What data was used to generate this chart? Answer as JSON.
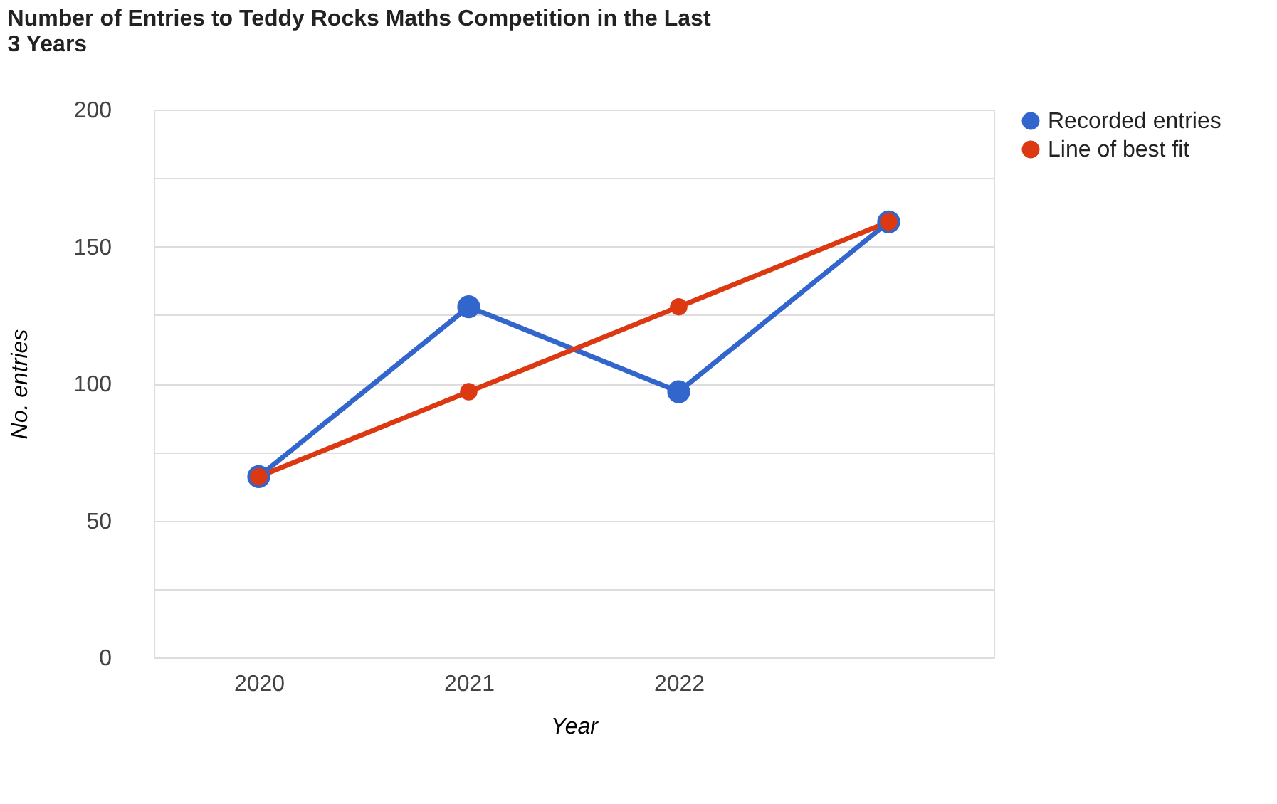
{
  "chart_data": {
    "type": "line",
    "title": "Number of Entries to Teddy Rocks Maths Competition in the Last 3 Years",
    "xlabel": "Year",
    "ylabel": "No. entries",
    "categories": [
      "2020",
      "2021",
      "2022",
      null
    ],
    "series": [
      {
        "name": "Recorded entries",
        "color": "#3366cc",
        "values": [
          66,
          128,
          97,
          159
        ]
      },
      {
        "name": "Line of best fit",
        "color": "#dc3912",
        "values": [
          66,
          97,
          128,
          159
        ]
      }
    ],
    "ylim": [
      0,
      200
    ],
    "yticks": [
      0,
      {
        "value": 25,
        "label": null
      },
      50,
      {
        "value": 75,
        "label": null
      },
      100,
      {
        "value": 125,
        "label": null
      },
      150,
      {
        "value": 175,
        "label": null
      },
      200
    ],
    "grid": "y",
    "legend": "top right",
    "marker": "circle",
    "line_style": "solid"
  }
}
